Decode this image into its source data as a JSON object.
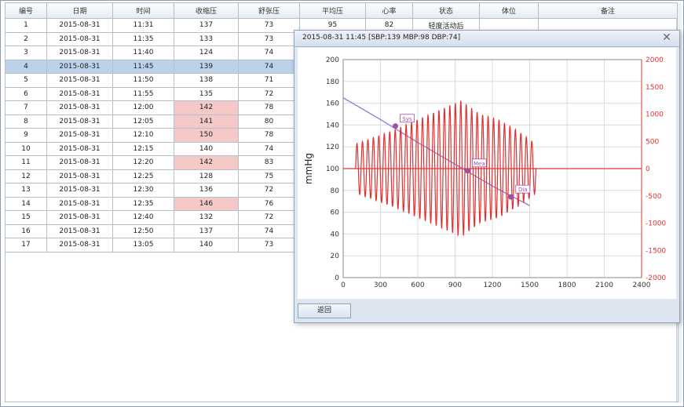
{
  "table": {
    "headers": [
      "编号",
      "日期",
      "时间",
      "收缩压",
      "舒张压",
      "平均压",
      "心率",
      "状态",
      "体位",
      "备注"
    ],
    "rows": [
      [
        "1",
        "2015-08-31",
        "11:31",
        "137",
        "73",
        "95",
        "82",
        "轻度活动后",
        "",
        ""
      ],
      [
        "2",
        "2015-08-31",
        "11:35",
        "133",
        "73",
        "",
        "",
        "",
        "",
        ""
      ],
      [
        "3",
        "2015-08-31",
        "11:40",
        "124",
        "74",
        "",
        "",
        "",
        "",
        ""
      ],
      [
        "4",
        "2015-08-31",
        "11:45",
        "139",
        "74",
        "",
        "",
        "",
        "",
        ""
      ],
      [
        "5",
        "2015-08-31",
        "11:50",
        "138",
        "71",
        "",
        "",
        "",
        "",
        ""
      ],
      [
        "6",
        "2015-08-31",
        "11:55",
        "135",
        "72",
        "",
        "",
        "",
        "",
        ""
      ],
      [
        "7",
        "2015-08-31",
        "12:00",
        "142",
        "78",
        "",
        "",
        "",
        "",
        ""
      ],
      [
        "8",
        "2015-08-31",
        "12:05",
        "141",
        "80",
        "",
        "",
        "",
        "",
        ""
      ],
      [
        "9",
        "2015-08-31",
        "12:10",
        "150",
        "78",
        "",
        "",
        "",
        "",
        ""
      ],
      [
        "10",
        "2015-08-31",
        "12:15",
        "140",
        "74",
        "",
        "",
        "",
        "",
        ""
      ],
      [
        "11",
        "2015-08-31",
        "12:20",
        "142",
        "83",
        "",
        "",
        "",
        "",
        ""
      ],
      [
        "12",
        "2015-08-31",
        "12:25",
        "128",
        "75",
        "",
        "",
        "",
        "",
        ""
      ],
      [
        "13",
        "2015-08-31",
        "12:30",
        "136",
        "72",
        "",
        "",
        "",
        "",
        ""
      ],
      [
        "14",
        "2015-08-31",
        "12:35",
        "146",
        "76",
        "",
        "",
        "",
        "",
        ""
      ],
      [
        "15",
        "2015-08-31",
        "12:40",
        "132",
        "72",
        "",
        "",
        "",
        "",
        ""
      ],
      [
        "16",
        "2015-08-31",
        "12:50",
        "137",
        "74",
        "",
        "",
        "",
        "",
        ""
      ],
      [
        "17",
        "2015-08-31",
        "13:05",
        "140",
        "73",
        "",
        "",
        "",
        "",
        ""
      ]
    ],
    "selected_row_index": 3,
    "highlighted_systolic_rows": [
      6,
      7,
      8,
      10,
      13
    ],
    "highlight_color": "#f6c9c9",
    "selected_color": "#bcd2ea"
  },
  "dialog": {
    "title": "2015-08-31 11:45 [SBP:139 MBP:98 DBP:74]",
    "close_glyph": "✕",
    "button_label": "返回"
  },
  "chart_data": {
    "type": "line",
    "ylabel": "mmHg",
    "x_ticks": [
      0,
      300,
      600,
      900,
      1200,
      1500,
      1800,
      2100,
      2400
    ],
    "xlim": [
      0,
      2400
    ],
    "y_left_ticks": [
      0,
      20,
      40,
      60,
      80,
      100,
      120,
      140,
      160,
      180,
      200
    ],
    "ylim_left": [
      0,
      200
    ],
    "y_right_ticks": [
      -2000,
      -1500,
      -1000,
      -500,
      0,
      500,
      1000,
      1500,
      2000
    ],
    "ylim_right": [
      -2000,
      2000
    ],
    "grid": true,
    "series": [
      {
        "kind": "pressure",
        "axis": "left",
        "color": "#8080d0",
        "x": [
          0,
          300,
          600,
          900,
          1200,
          1500
        ],
        "y": [
          165,
          145,
          124,
          104,
          84,
          66
        ]
      },
      {
        "kind": "oscillation",
        "axis": "right",
        "color": "#e03030",
        "x": [
          100,
          1550
        ],
        "amplitude": [
          [
            100,
            450
          ],
          [
            400,
            700
          ],
          [
            600,
            900
          ],
          [
            800,
            1100
          ],
          [
            950,
            1250
          ],
          [
            1100,
            1000
          ],
          [
            1250,
            900
          ],
          [
            1400,
            700
          ],
          [
            1550,
            450
          ]
        ],
        "cycles": 33
      }
    ],
    "markers": [
      {
        "label": "Sys",
        "x": 420,
        "y": 139,
        "color": "#a050a0"
      },
      {
        "label": "Mea",
        "x": 1000,
        "y": 98,
        "color": "#a050a0"
      },
      {
        "label": "Dia",
        "x": 1350,
        "y": 74,
        "color": "#a050a0"
      }
    ],
    "zero_line_color": "#e03030"
  }
}
